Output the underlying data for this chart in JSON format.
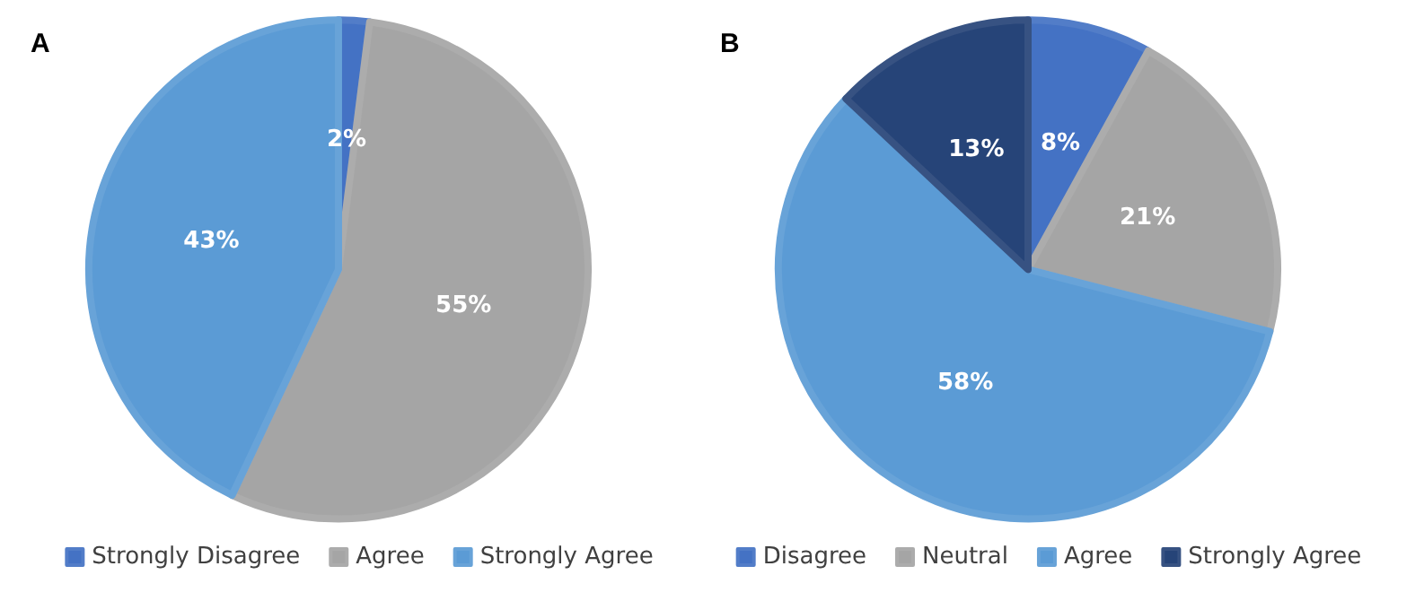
{
  "chart_data": [
    {
      "type": "pie",
      "title": "A",
      "categories": [
        "Strongly Disagree",
        "Agree",
        "Strongly Agree"
      ],
      "values": [
        2,
        55,
        43
      ],
      "value_labels": [
        "2%",
        "55%",
        "43%"
      ],
      "colors": [
        "#4472c4",
        "#a5a5a5",
        "#5b9bd5"
      ],
      "legend": "bottom"
    },
    {
      "type": "pie",
      "title": "B",
      "categories": [
        "Disagree",
        "Neutral",
        "Agree",
        "Strongly Agree"
      ],
      "values": [
        8,
        21,
        58,
        13
      ],
      "value_labels": [
        "8%",
        "21%",
        "58%",
        "13%"
      ],
      "colors": [
        "#4472c4",
        "#a5a5a5",
        "#5b9bd5",
        "#264478"
      ],
      "legend": "bottom"
    }
  ]
}
